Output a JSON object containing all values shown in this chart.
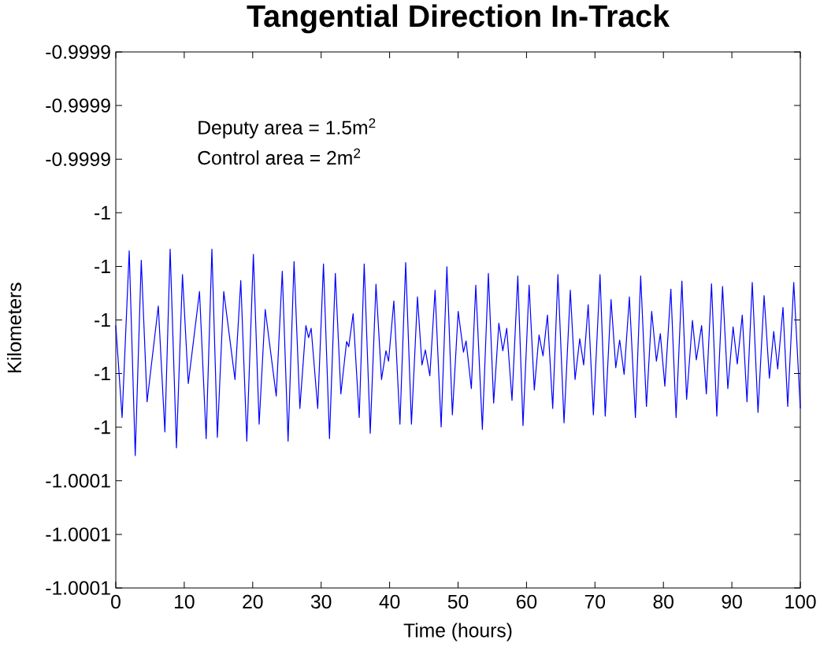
{
  "chart_data": {
    "type": "line",
    "title": "Tangential Direction In-Track",
    "xlabel": "Time (hours)",
    "ylabel": "Kilometers",
    "annotations": [
      "Deputy area = 1.5m$^{2}$",
      "Control area = 2m$^{2}$"
    ],
    "color": "#0000ff",
    "xlim": [
      0,
      100
    ],
    "ylim": [
      -1.0001,
      -0.9999
    ],
    "xticks": [
      0,
      10,
      20,
      30,
      40,
      50,
      60,
      70,
      80,
      90,
      100
    ],
    "yticks": [
      -1.0001,
      {
        "value": -1.00008,
        "label": "-1.0001"
      },
      {
        "value": -1.00006,
        "label": "-1.0001"
      },
      {
        "value": -1.00004,
        "label": "-1"
      },
      {
        "value": -1.00002,
        "label": "-1"
      },
      -1,
      {
        "value": -0.99998,
        "label": "-1"
      },
      {
        "value": -0.99996,
        "label": "-1"
      },
      {
        "value": -0.99994,
        "label": "-0.9999"
      },
      {
        "value": -0.99992,
        "label": "-0.9999"
      },
      -0.9999
    ],
    "x": [
      0,
      0.92,
      1.96,
      2.84,
      3.72,
      4.57,
      6.21,
      7.17,
      7.94,
      8.86,
      9.74,
      10.59,
      12.23,
      13.2,
      14.04,
      14.84,
      15.77,
      17.41,
      18.26,
      19.14,
      20.1,
      20.94,
      21.83,
      23.44,
      24.32,
      25.17,
      26.04,
      26.89,
      27.77,
      28.16,
      28.54,
      29.5,
      30.34,
      31.22,
      32.07,
      32.88,
      33.72,
      34.03,
      34.67,
      35.56,
      36.29,
      37.17,
      38.01,
      38.82,
      39.47,
      39.85,
      40.62,
      41.51,
      42.35,
      43.19,
      44.07,
      44.73,
      45.22,
      45.88,
      46.64,
      47.53,
      48.37,
      49.17,
      50.02,
      50.79,
      51.17,
      51.94,
      52.59,
      53.55,
      54.43,
      55.2,
      55.96,
      56.54,
      57.11,
      57.88,
      58.73,
      59.49,
      60.38,
      61.14,
      61.83,
      62.41,
      63.06,
      63.83,
      64.59,
      65.48,
      66.4,
      67.09,
      67.78,
      68.35,
      69.01,
      69.77,
      70.74,
      71.5,
      72.35,
      73.04,
      73.61,
      74.26,
      75.03,
      75.91,
      76.68,
      77.52,
      78.29,
      78.98,
      79.55,
      80.21,
      81.09,
      81.85,
      82.7,
      83.39,
      84.24,
      84.81,
      85.58,
      86.27,
      87.03,
      87.8,
      88.64,
      89.41,
      90.18,
      90.79,
      91.52,
      92.21,
      92.98,
      93.82,
      94.71,
      95.48,
      96.12,
      96.7,
      97.47,
      98.16,
      99.04,
      100
    ],
    "values": [
      -1.0000021,
      -1.0000364,
      -0.9999742,
      -1.0000506,
      -0.9999777,
      -1.0000305,
      -0.9999948,
      -1.0000418,
      -0.9999736,
      -1.0000477,
      -0.9999831,
      -1.0000237,
      -0.9999894,
      -1.0000443,
      -0.9999736,
      -1.0000438,
      -0.9999894,
      -1.0000222,
      -0.9999853,
      -1.0000452,
      -0.9999755,
      -1.0000389,
      -0.9999961,
      -1.0000284,
      -0.9999818,
      -1.0000452,
      -0.9999782,
      -1.000033,
      -1.0000021,
      -1.0000066,
      -1.0000031,
      -1.000033,
      -0.9999791,
      -1.0000443,
      -0.9999826,
      -1.0000276,
      -1.000008,
      -1.00001,
      -0.9999977,
      -1.0000364,
      -0.9999791,
      -1.0000423,
      -0.9999867,
      -1.0000222,
      -1.0000115,
      -1.0000154,
      -0.9999929,
      -1.0000389,
      -0.9999786,
      -1.0000389,
      -0.9999914,
      -1.0000168,
      -1.0000112,
      -1.0000208,
      -0.9999889,
      -1.0000399,
      -0.9999801,
      -1.0000354,
      -0.9999968,
      -1.000012,
      -1.0000078,
      -1.0000256,
      -0.999987,
      -1.0000408,
      -0.9999826,
      -1.000031,
      -1.0000012,
      -1.0000115,
      -1.0000031,
      -1.00003,
      -0.9999836,
      -1.0000394,
      -0.999987,
      -1.0000261,
      -1.0000056,
      -1.0000134,
      -0.9999982,
      -1.000033,
      -0.9999831,
      -1.0000384,
      -0.9999889,
      -1.0000222,
      -1.000007,
      -1.0000168,
      -0.9999943,
      -1.0000354,
      -0.9999831,
      -1.0000359,
      -0.9999924,
      -1.0000178,
      -1.0000075,
      -1.0000203,
      -0.9999914,
      -1.0000364,
      -0.9999836,
      -1.0000323,
      -0.9999968,
      -1.0000154,
      -1.0000051,
      -1.0000247,
      -0.9999885,
      -1.0000364,
      -0.9999855,
      -1.0000296,
      -1.0000002,
      -1.0000149,
      -1.0000021,
      -1.0000276,
      -0.9999865,
      -1.0000359,
      -0.9999875,
      -1.0000256,
      -1.0000026,
      -1.0000164,
      -0.9999982,
      -1.0000305,
      -0.999986,
      -1.0000345,
      -0.9999909,
      -1.0000217,
      -1.0000043,
      -1.0000183,
      -0.9999953,
      -1.0000323,
      -0.999986,
      -1.000033
    ]
  }
}
